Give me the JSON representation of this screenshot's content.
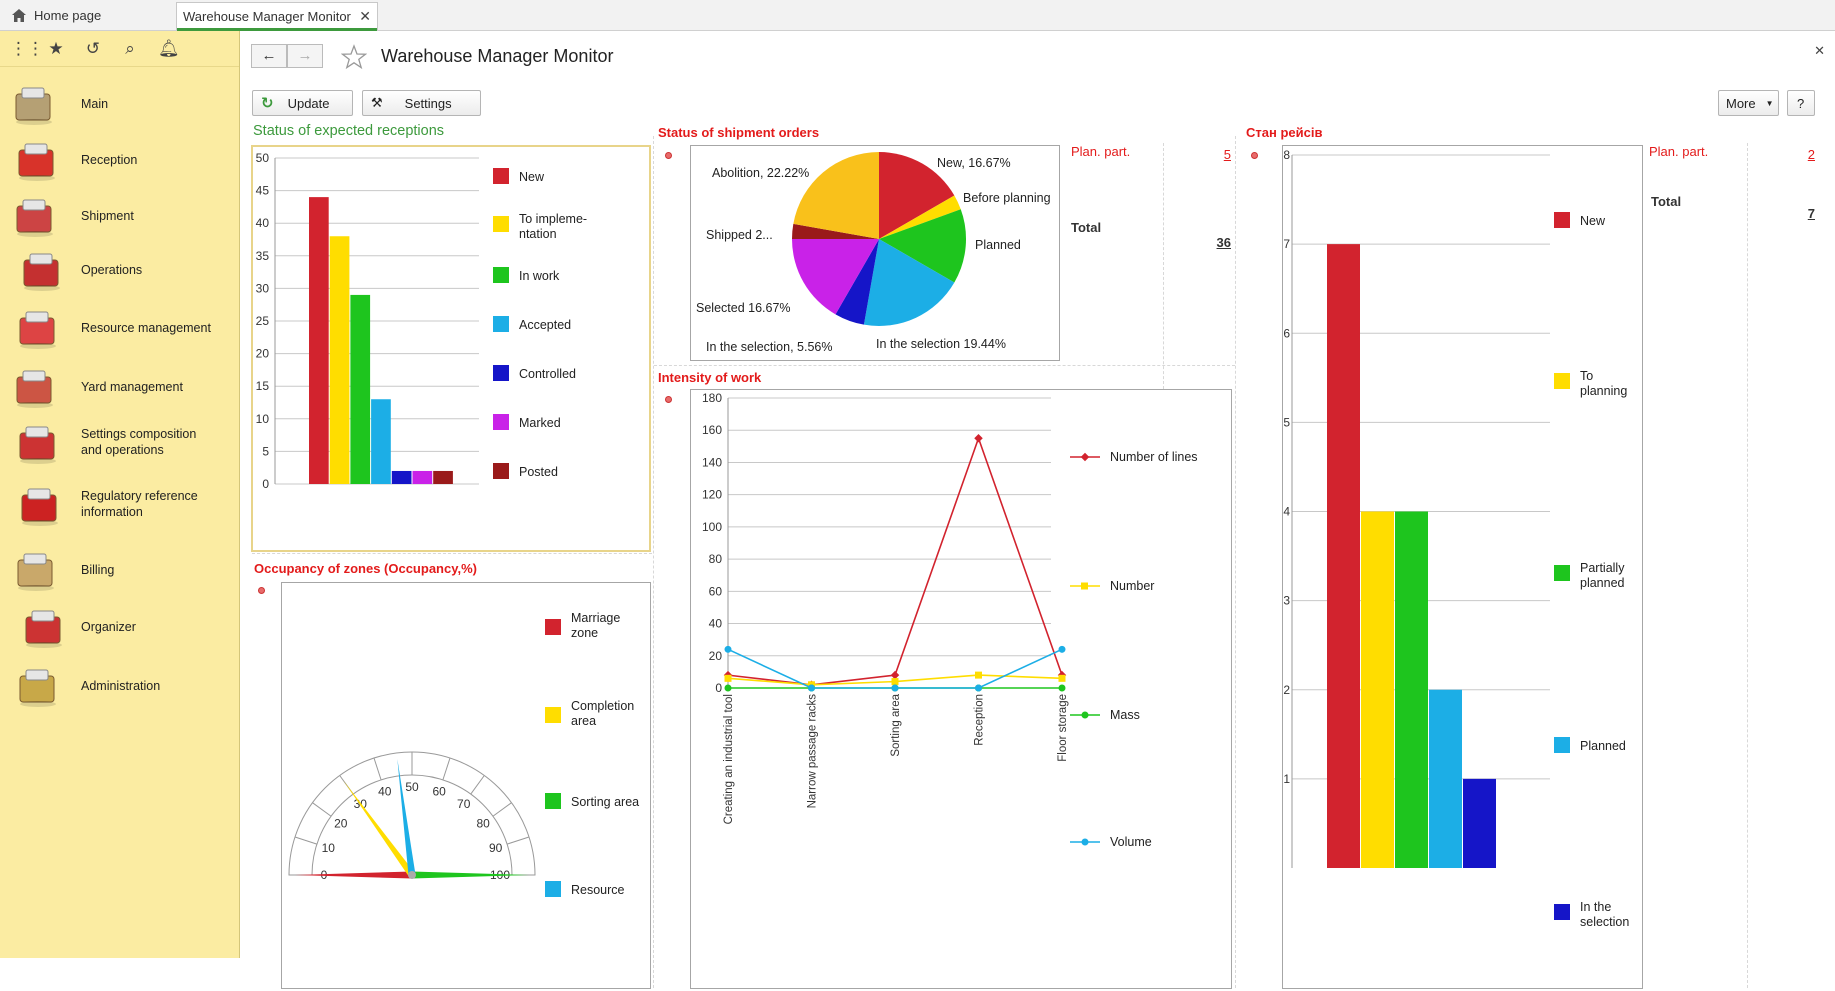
{
  "tabs": {
    "home": "Home page",
    "active": "Warehouse Manager Monitor"
  },
  "sidebar": {
    "items": [
      {
        "label": "Main",
        "icon": "desk-lamp-icon"
      },
      {
        "label": "Reception",
        "icon": "boxes-icon"
      },
      {
        "label": "Shipment",
        "icon": "truck-icon"
      },
      {
        "label": "Operations",
        "icon": "clipboard-icon"
      },
      {
        "label": "Resource management",
        "icon": "worker-icon"
      },
      {
        "label": "Yard management",
        "icon": "truck-yard-icon"
      },
      {
        "label": "Settings composition and operations",
        "icon": "shelf-icon"
      },
      {
        "label": "Regulatory reference information",
        "icon": "binders-icon"
      },
      {
        "label": "Billing",
        "icon": "coins-icon"
      },
      {
        "label": "Organizer",
        "icon": "question-board-icon"
      },
      {
        "label": "Administration",
        "icon": "database-computer-icon"
      }
    ]
  },
  "header": {
    "title": "Warehouse Manager Monitor"
  },
  "toolbar": {
    "update": "Update",
    "settings": "Settings",
    "more": "More",
    "help": "?"
  },
  "receptions": {
    "title": "Status of expected receptions",
    "ticks": [
      "50",
      "45",
      "40",
      "35",
      "30",
      "25",
      "20",
      "15",
      "10",
      "5",
      "0"
    ]
  },
  "shipments": {
    "title": "Status of shipment orders",
    "labels": [
      "New, 16.67%",
      "Before planning",
      "Planned",
      "In the selection 19.44%",
      "In the selection, 5.56%",
      "Selected 16.67%",
      "Shipped  2...",
      "Abolition, 22.22%"
    ],
    "plan_label": "Plan. part.",
    "plan_value": "5",
    "total_label": "Total",
    "total_value": "36"
  },
  "intensity": {
    "title": "Intensity of work",
    "ticks": [
      "180",
      "160",
      "140",
      "120",
      "100",
      "80",
      "60",
      "40",
      "20",
      "0"
    ]
  },
  "occupancy": {
    "title": "Occupancy of zones (Occupancy,%)",
    "ticks": [
      "0",
      "10",
      "20",
      "30",
      "40",
      "50",
      "60",
      "70",
      "80",
      "90",
      "100"
    ]
  },
  "trips": {
    "title": "Стан рейсів",
    "ticks": [
      "8",
      "7",
      "6",
      "5",
      "4",
      "3",
      "2",
      "1"
    ],
    "plan_label": "Plan. part.",
    "plan_value": "2",
    "total_label": "Total",
    "total_value": "7"
  },
  "colors": {
    "accent_green": "#3d9a3d",
    "title_red": "#e31b1b",
    "sidebar_bg": "#fbeca2"
  },
  "chart_data": [
    {
      "type": "bar",
      "title": "Status of expected receptions",
      "ylim": [
        0,
        50
      ],
      "series": [
        {
          "name": "New",
          "values": [
            44
          ],
          "color": "#d2232e"
        },
        {
          "name": "To impleme-ntation",
          "values": [
            38
          ],
          "color": "#ffdd00"
        },
        {
          "name": "In work",
          "values": [
            29
          ],
          "color": "#1ec51e"
        },
        {
          "name": "Accepted",
          "values": [
            13
          ],
          "color": "#1caee6"
        },
        {
          "name": "Controlled",
          "values": [
            2
          ],
          "color": "#1515c8"
        },
        {
          "name": "Marked",
          "values": [
            2
          ],
          "color": "#c922e8"
        },
        {
          "name": "Posted",
          "values": [
            2
          ],
          "color": "#9a1a1a"
        }
      ]
    },
    {
      "type": "pie",
      "title": "Status of shipment orders",
      "slices": [
        {
          "name": "New",
          "value": 16.67,
          "color": "#d2232e"
        },
        {
          "name": "Before planning",
          "value": 2.78,
          "color": "#ffdd00"
        },
        {
          "name": "Planned",
          "value": 13.89,
          "color": "#1ec51e"
        },
        {
          "name": "In the selection",
          "value": 19.44,
          "color": "#1caee6"
        },
        {
          "name": "In the selection",
          "value": 5.56,
          "color": "#1515c8"
        },
        {
          "name": "Selected",
          "value": 16.67,
          "color": "#c922e8"
        },
        {
          "name": "Shipped",
          "value": 2.78,
          "color": "#9a1a1a"
        },
        {
          "name": "Abolition",
          "value": 22.22,
          "color": "#f9c11b"
        }
      ]
    },
    {
      "type": "line",
      "title": "Intensity of work",
      "categories": [
        "Creating an industrial tool",
        "Narrow passage racks",
        "Sorting area",
        "Reception",
        "Floor storage"
      ],
      "ylim": [
        0,
        180
      ],
      "series": [
        {
          "name": "Number of lines",
          "values": [
            8,
            2,
            8,
            155,
            8
          ],
          "color": "#d2232e"
        },
        {
          "name": "Number",
          "values": [
            6,
            2,
            4,
            8,
            6
          ],
          "color": "#ffdd00"
        },
        {
          "name": "Mass",
          "values": [
            0,
            0,
            0,
            0,
            0
          ],
          "color": "#1ec51e"
        },
        {
          "name": "Volume",
          "values": [
            24,
            0,
            0,
            0,
            24
          ],
          "color": "#1caee6"
        }
      ]
    },
    {
      "type": "gauge",
      "title": "Occupancy of zones (Occupancy,%)",
      "range": [
        0,
        100
      ],
      "series": [
        {
          "name": "Marriage zone",
          "value": 0,
          "color": "#d2232e"
        },
        {
          "name": "Completion area",
          "value": 30,
          "color": "#ffdd00"
        },
        {
          "name": "Sorting area",
          "value": 100,
          "color": "#1ec51e"
        },
        {
          "name": "Resource",
          "value": 46,
          "color": "#1caee6"
        }
      ]
    },
    {
      "type": "bar",
      "title": "Стан рейсів",
      "ylim": [
        0,
        8
      ],
      "series": [
        {
          "name": "New",
          "values": [
            7
          ],
          "color": "#d2232e"
        },
        {
          "name": "To planning",
          "values": [
            4
          ],
          "color": "#ffdd00"
        },
        {
          "name": "Partially planned",
          "values": [
            4
          ],
          "color": "#1ec51e"
        },
        {
          "name": "Planned",
          "values": [
            2
          ],
          "color": "#1caee6"
        },
        {
          "name": "In the selection",
          "values": [
            1
          ],
          "color": "#1515c8"
        }
      ]
    }
  ]
}
